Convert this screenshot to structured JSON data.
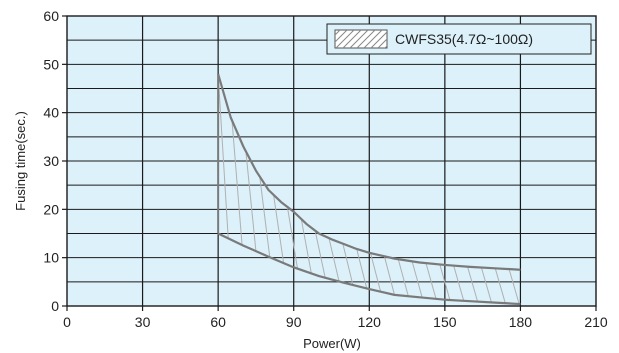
{
  "chart_data": {
    "type": "area",
    "title": "",
    "xlabel": "Power(W)",
    "ylabel": "Fusing time(sec.)",
    "xlim": [
      0,
      210
    ],
    "ylim": [
      0,
      60
    ],
    "x_ticks": [
      0,
      30,
      60,
      90,
      120,
      150,
      180,
      210
    ],
    "y_ticks": [
      0,
      10,
      20,
      30,
      40,
      50,
      60
    ],
    "grid": true,
    "grid_y_minor_step": 5,
    "legend_position": "top-right",
    "colors": {
      "plot_background": "#dcf1fa",
      "grid_line": "#1a1a1a",
      "series_line": "#7a7a7a",
      "hatch": "#b0b0b0"
    },
    "series": [
      {
        "name": "CWFS35(4.7Ω~100Ω)",
        "upper": {
          "x": [
            60,
            65,
            70,
            75,
            80,
            85,
            90,
            95,
            100,
            105,
            110,
            115,
            120,
            130,
            140,
            150,
            160,
            170,
            180
          ],
          "y": [
            48,
            39,
            33,
            28,
            24,
            21.5,
            19.5,
            17,
            15,
            13.8,
            12.8,
            11.8,
            11,
            9.8,
            9.0,
            8.5,
            8.1,
            7.8,
            7.5
          ]
        },
        "lower": {
          "x": [
            60,
            70,
            80,
            90,
            100,
            110,
            120,
            130,
            140,
            150,
            160,
            170,
            180
          ],
          "y": [
            15,
            12.5,
            10.2,
            8.0,
            6.2,
            4.8,
            3.5,
            2.3,
            1.8,
            1.3,
            1.0,
            0.7,
            0.4
          ]
        }
      }
    ]
  }
}
